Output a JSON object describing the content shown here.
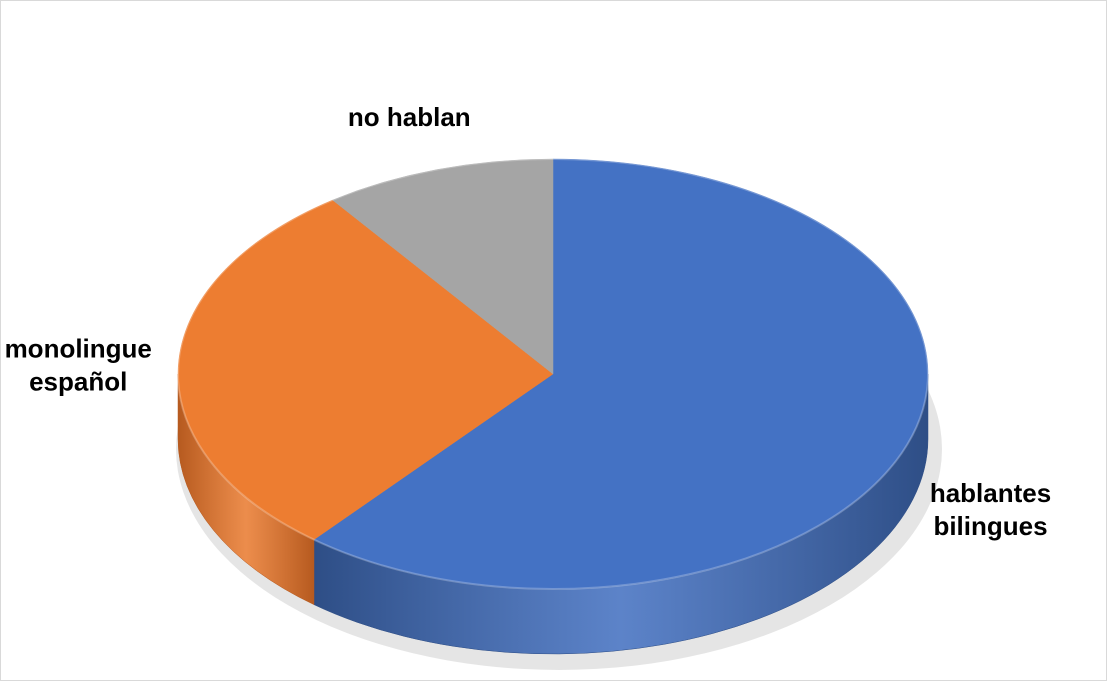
{
  "chart_data": {
    "type": "pie",
    "style": "3d-pie",
    "title": "",
    "grid": false,
    "legend": "none",
    "start_angle_deg": 0,
    "direction": "clockwise",
    "slices": [
      {
        "label": "hablantes bilingues",
        "label_lines": [
          "hablantes",
          "bilingues"
        ],
        "value": 61,
        "color": "#4472C4",
        "side_color": "#2E4E86"
      },
      {
        "label": "monolingue español",
        "label_lines": [
          "monolingue",
          "español"
        ],
        "value": 29,
        "color": "#ED7D31",
        "side_color": "#B65A1F"
      },
      {
        "label": "no hablan",
        "label_lines": [
          "no hablan"
        ],
        "value": 10,
        "color": "#A5A5A5",
        "side_color": "#7A7A7A"
      }
    ]
  }
}
